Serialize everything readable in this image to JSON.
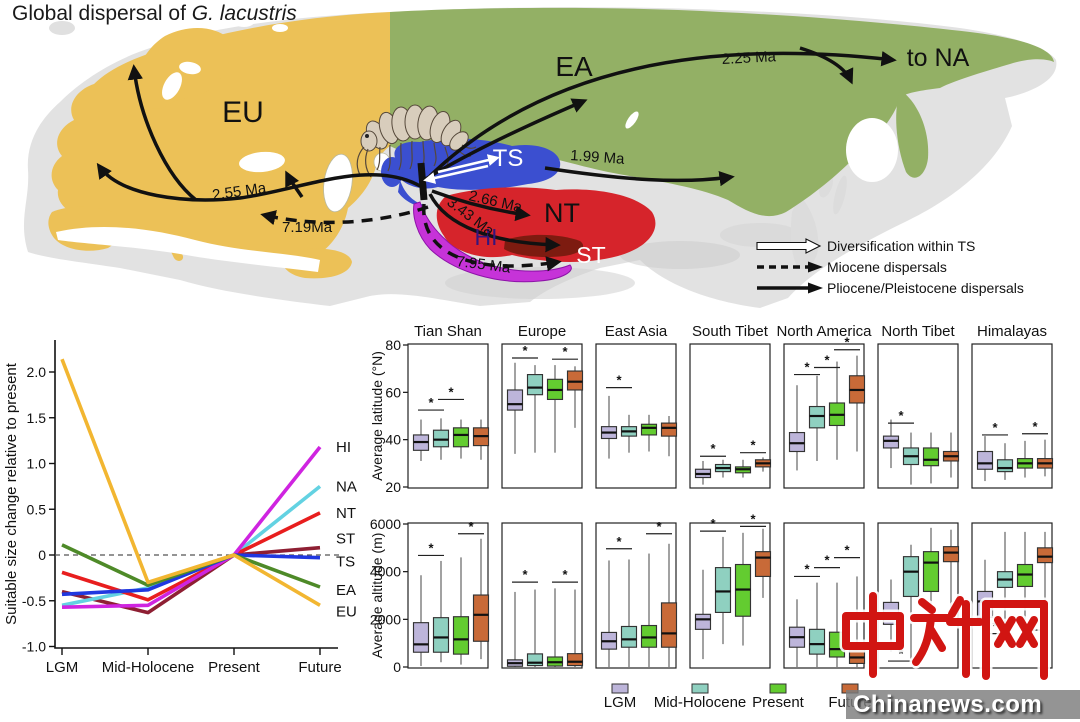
{
  "figure_title": {
    "prefix": "Global dispersal of ",
    "species": "G. lacustris"
  },
  "map": {
    "region_labels": [
      {
        "code": "EU"
      },
      {
        "code": "EA"
      },
      {
        "code": "TS"
      },
      {
        "code": "NT"
      },
      {
        "code": "HI"
      },
      {
        "code": "ST"
      }
    ],
    "to_na_label": "to NA",
    "dispersal_labels": {
      "d255": "2.55 Ma",
      "d719": "7.19Ma",
      "d225": "2.25 Ma",
      "d199": "1.99 Ma",
      "d266": "2.66 Ma",
      "d343": "3.43 Ma",
      "d795": "7.95 Ma"
    },
    "legend": {
      "diversification": "Diversification within TS",
      "miocene": "Miocene dispersals",
      "pliocene": "Pliocene/Pleistocene dispersals"
    },
    "colors": {
      "eu": "#ecc157",
      "ea": "#93b065",
      "ts": "#3b4fd0",
      "nt": "#d6242b",
      "hi": "#c633d8",
      "st": "#7d1b10",
      "land": "#e2e2e2"
    }
  },
  "watermark": {
    "site_cn": "中新网",
    "site_en": "Chinanews.com"
  },
  "chart_data": [
    {
      "id": "suitable-size-change",
      "type": "line",
      "x_categories": [
        "LGM",
        "Mid-Holocene",
        "Present",
        "Future"
      ],
      "ylabel": "Suitable size change relative to present",
      "ylim": [
        -1.0,
        2.35
      ],
      "yticks": [
        "2.0",
        "1.5",
        "1.0",
        "0.5",
        "0",
        "-0.5",
        "-1.0"
      ],
      "ytick_values": [
        2.0,
        1.5,
        1.0,
        0.5,
        0,
        -0.5,
        -1.0
      ],
      "zero_reference_line": true,
      "legend_position": "right-of-lines",
      "series": [
        {
          "name": "HI",
          "color": "#cf24e0",
          "values": [
            -0.57,
            -0.55,
            0,
            1.18
          ]
        },
        {
          "name": "NA",
          "color": "#63d2e2",
          "values": [
            -0.55,
            -0.36,
            0,
            0.75
          ]
        },
        {
          "name": "NT",
          "color": "#e81e1e",
          "values": [
            -0.19,
            -0.49,
            0,
            0.46
          ]
        },
        {
          "name": "ST",
          "color": "#8e1f33",
          "values": [
            -0.4,
            -0.63,
            0,
            0.08
          ]
        },
        {
          "name": "TS",
          "color": "#2038e0",
          "values": [
            -0.43,
            -0.38,
            0,
            -0.03
          ]
        },
        {
          "name": "EA",
          "color": "#4e8a28",
          "values": [
            0.11,
            -0.33,
            0,
            -0.35
          ]
        },
        {
          "name": "EU",
          "color": "#f2b631",
          "values": [
            2.14,
            -0.3,
            0,
            -0.55
          ]
        }
      ]
    },
    {
      "id": "range-shift-boxplots",
      "type": "boxplot",
      "box_format": [
        "low",
        "q1",
        "median",
        "q3",
        "high"
      ],
      "columns": [
        "Tian Shan",
        "Europe",
        "East Asia",
        "South Tibet",
        "North America",
        "North Tibet",
        "Himalayas"
      ],
      "groups": [
        {
          "label": "LGM",
          "color": "#bdb5da"
        },
        {
          "label": "Mid-Holocene",
          "color": "#8fd0c0"
        },
        {
          "label": "Present",
          "color": "#63cc30"
        },
        {
          "label": "Future",
          "color": "#c86a38"
        }
      ],
      "rows": [
        {
          "ylabel": "Average latitude (°N)",
          "ylim": [
            20,
            80
          ],
          "yticks": [
            20,
            40,
            60,
            80
          ],
          "panels": [
            {
              "column": "Tian Shan",
              "boxes": [
                [
                  31,
                  35.5,
                  39,
                  42,
                  48.5
                ],
                [
                  31.5,
                  37,
                  40,
                  44,
                  49
                ],
                [
                  32,
                  37,
                  42,
                  45,
                  48.5
                ],
                [
                  31.5,
                  37.5,
                  41.5,
                  45,
                  48.5
                ]
              ],
              "sig": [
                [
                  0,
                  1,
                  52.5
                ],
                [
                  1,
                  2,
                  57
                ]
              ]
            },
            {
              "column": "Europe",
              "boxes": [
                [
                  34,
                  52.5,
                  55,
                  61,
                  72.5
                ],
                [
                  34.5,
                  59,
                  62,
                  67.5,
                  71.5
                ],
                [
                  34.5,
                  57,
                  61,
                  65.5,
                  71.5
                ],
                [
                  45,
                  61,
                  64.5,
                  69,
                  71
                ]
              ],
              "sig": [
                [
                  0,
                  1,
                  74.5
                ],
                [
                  2,
                  3,
                  74
                ]
              ]
            },
            {
              "column": "East Asia",
              "boxes": [
                [
                  32,
                  40.5,
                  43,
                  45.5,
                  58.5
                ],
                [
                  34.5,
                  41.5,
                  43.5,
                  45.5,
                  50.5
                ],
                [
                  35,
                  42,
                  45,
                  46.5,
                  50.5
                ],
                [
                  33,
                  41.5,
                  45,
                  47,
                  50
                ]
              ],
              "sig": [
                [
                  0,
                  1,
                  62
                ]
              ]
            },
            {
              "column": "South Tibet",
              "boxes": [
                [
                  21,
                  24,
                  25.5,
                  27.5,
                  31
                ],
                [
                  24,
                  26.5,
                  28,
                  29.5,
                  31.5
                ],
                [
                  24,
                  26,
                  27.5,
                  28.5,
                  31.5
                ],
                [
                  26.5,
                  28.5,
                  30,
                  31.5,
                  32.5
                ]
              ],
              "sig": [
                [
                  0,
                  1,
                  33
                ],
                [
                  2,
                  3,
                  34.5
                ]
              ]
            },
            {
              "column": "North America",
              "boxes": [
                [
                  27,
                  35,
                  38.5,
                  43,
                  63
                ],
                [
                  31,
                  45,
                  50,
                  54,
                  67
                ],
                [
                  31.5,
                  46,
                  50.5,
                  55.5,
                  73
                ],
                [
                  35,
                  55.5,
                  61,
                  67,
                  75.5
                ]
              ],
              "sig": [
                [
                  0,
                  1,
                  67.5
                ],
                [
                  1,
                  2,
                  70.5
                ],
                [
                  2,
                  3,
                  78
                ]
              ]
            },
            {
              "column": "North Tibet",
              "boxes": [
                [
                  28,
                  36.5,
                  39.5,
                  41.5,
                  48.5
                ],
                [
                  21,
                  29.5,
                  33,
                  36.5,
                  43
                ],
                [
                  21.5,
                  29,
                  31.5,
                  36.5,
                  43
                ],
                [
                  24,
                  31,
                  33,
                  35,
                  43
                ]
              ],
              "sig": [
                [
                  0,
                  1,
                  47
                ]
              ]
            },
            {
              "column": "Himalayas",
              "boxes": [
                [
                  22.5,
                  27.5,
                  30,
                  35,
                  41.5
                ],
                [
                  23,
                  26.5,
                  28,
                  31.5,
                  38.5
                ],
                [
                  24,
                  28,
                  30,
                  32,
                  39.5
                ],
                [
                  24.5,
                  28,
                  30,
                  32,
                  40
                ]
              ],
              "sig": [
                [
                  0,
                  1,
                  42
                ],
                [
                  2,
                  3,
                  42.5
                ]
              ]
            }
          ]
        },
        {
          "ylabel": "Average altitude (m)",
          "ylim": [
            0,
            6000
          ],
          "yticks": [
            0,
            2000,
            4000,
            6000
          ],
          "panels": [
            {
              "column": "Tian Shan",
              "boxes": [
                [
                  40,
                  620,
                  950,
                  1860,
                  3850
                ],
                [
                  200,
                  620,
                  1240,
                  2070,
                  4450
                ],
                [
                  100,
                  540,
                  1160,
                  2110,
                  4600
                ],
                [
                  330,
                  1080,
                  2190,
                  3020,
                  5380
                ]
              ],
              "sig": [
                [
                  0,
                  1,
                  4680
                ],
                [
                  2,
                  3,
                  5590
                ]
              ]
            },
            {
              "column": "Europe",
              "boxes": [
                [
                  0,
                  30,
                  160,
                  300,
                  3150
                ],
                [
                  0,
                  60,
                  180,
                  550,
                  3250
                ],
                [
                  0,
                  40,
                  200,
                  420,
                  3300
                ],
                [
                  0,
                  60,
                  220,
                  560,
                  3250
                ]
              ],
              "sig": [
                [
                  0,
                  1,
                  3560
                ],
                [
                  2,
                  3,
                  3560
                ]
              ]
            },
            {
              "column": "East Asia",
              "boxes": [
                [
                  0,
                  750,
                  1080,
                  1450,
                  4470
                ],
                [
                  0,
                  830,
                  1160,
                  1700,
                  4510
                ],
                [
                  0,
                  830,
                  1240,
                  1740,
                  4760
                ],
                [
                  0,
                  830,
                  1410,
                  2690,
                  5170
                ]
              ],
              "sig": [
                [
                  0,
                  1,
                  4960
                ],
                [
                  2,
                  3,
                  5590
                ]
              ]
            },
            {
              "column": "South Tibet",
              "boxes": [
                [
                  330,
                  1580,
                  2000,
                  2210,
                  4080
                ],
                [
                  960,
                  2290,
                  3170,
                  4170,
                  5460
                ],
                [
                  900,
                  2130,
                  3250,
                  4300,
                  5630
                ],
                [
                  2900,
                  3800,
                  4590,
                  4840,
                  5800
                ]
              ],
              "sig": [
                [
                  0,
                  1,
                  5700
                ],
                [
                  2,
                  3,
                  5900
                ]
              ]
            },
            {
              "column": "North America",
              "boxes": [
                [
                  0,
                  830,
                  1250,
                  1670,
                  2840
                ],
                [
                  0,
                  540,
                  960,
                  1580,
                  3540
                ],
                [
                  0,
                  420,
                  750,
                  1460,
                  3540
                ],
                [
                  0,
                  150,
                  400,
                  800,
                  3800
                ]
              ],
              "sig": [
                [
                  0,
                  1,
                  3800
                ],
                [
                  1,
                  2,
                  4170
                ],
                [
                  2,
                  3,
                  4590
                ]
              ]
            },
            {
              "column": "North Tibet",
              "boxes": [
                [
                  630,
                  1790,
                  2050,
                  2710,
                  3670
                ],
                [
                  330,
                  2960,
                  4000,
                  4630,
                  5130
                ],
                [
                  1170,
                  3170,
                  4380,
                  4840,
                  5840
                ],
                [
                  2130,
                  4420,
                  4800,
                  5050,
                  5760
                ]
              ],
              "sig": [
                [
                  0,
                  1,
                  250
                ]
              ]
            },
            {
              "column": "Himalayas",
              "boxes": [
                [
                  750,
                  2080,
                  2750,
                  3170,
                  4500
                ],
                [
                  1170,
                  3340,
                  3670,
                  4000,
                  5670
                ],
                [
                  1200,
                  3380,
                  3880,
                  4300,
                  5670
                ],
                [
                  2080,
                  4380,
                  4630,
                  5000,
                  5670
                ]
              ],
              "sig": [
                [
                  0,
                  1,
                  1400
                ],
                [
                  2,
                  3,
                  1550
                ]
              ]
            }
          ]
        }
      ]
    }
  ]
}
